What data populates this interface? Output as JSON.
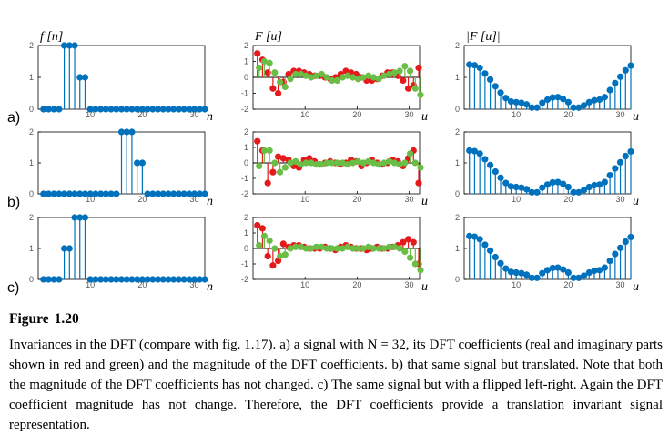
{
  "caption": {
    "label": "Figure",
    "number": "1.20",
    "text": "Invariances in the DFT (compare with fig. 1.17). a) a signal with N = 32, its DFT coefficients (real and imaginary parts shown in red and green) and the magnitude of the DFT coefficients. b) that same signal but translated. Note that both the magnitude of the DFT coefficients has not changed. c) The same signal but with a flipped left-right. Again the DFT coefficient magnitude has not change. Therefore, the DFT coefficients provide a translation invariant signal representation."
  },
  "colors": {
    "stem": "#0072BD",
    "real": "#E41A1C",
    "imag": "#6ABD45",
    "axis": "#000000",
    "tick_text": "#555555"
  },
  "chart_data": [
    {
      "type": "scatter",
      "panel": "a",
      "row_label": "a)",
      "title": "f [n]",
      "xlabel": "n",
      "xlim": [
        0,
        32
      ],
      "ylim": [
        0,
        2
      ],
      "xticks": [
        "10",
        "20",
        "30"
      ],
      "yticks": [
        "0",
        "1",
        "2"
      ],
      "series": [
        {
          "x": [
            1,
            2,
            3,
            4,
            5,
            6,
            7,
            8,
            9,
            10,
            11,
            12,
            13,
            14,
            15,
            16,
            17,
            18,
            19,
            20,
            21,
            22,
            23,
            24,
            25,
            26,
            27,
            28,
            29,
            30,
            31,
            32
          ],
          "values": [
            0,
            0,
            0,
            0,
            2,
            2,
            2,
            1,
            1,
            0,
            0,
            0,
            0,
            0,
            0,
            0,
            0,
            0,
            0,
            0,
            0,
            0,
            0,
            0,
            0,
            0,
            0,
            0,
            0,
            0,
            0,
            0
          ]
        }
      ]
    },
    {
      "type": "scatter",
      "panel": "a",
      "title": "F [u]",
      "xlabel": "u",
      "xlim": [
        0,
        32
      ],
      "ylim": [
        -2,
        2
      ],
      "xticks": [
        "10",
        "20",
        "30"
      ],
      "yticks": [
        "2",
        "1",
        "0",
        "-1",
        "-2"
      ],
      "series": [
        {
          "x": [
            1,
            2,
            3,
            4,
            5,
            6,
            7,
            8,
            9,
            10,
            11,
            12,
            13,
            14,
            15,
            16,
            17,
            18,
            19,
            20,
            21,
            22,
            23,
            24,
            25,
            26,
            27,
            28,
            29,
            30,
            31,
            32
          ],
          "values": [
            1.5,
            1.1,
            0.3,
            -0.7,
            -1.0,
            -0.3,
            0.2,
            0.4,
            0.4,
            0.3,
            0.2,
            0.1,
            0.1,
            0.0,
            -0.1,
            0.0,
            0.2,
            0.4,
            0.3,
            0.2,
            0.0,
            -0.2,
            -0.2,
            -0.1,
            0.1,
            0.3,
            0.3,
            0.1,
            -0.2,
            -0.7,
            -0.5,
            0.6
          ]
        },
        {
          "x": [
            1,
            2,
            3,
            4,
            5,
            6,
            7,
            8,
            9,
            10,
            11,
            12,
            13,
            14,
            15,
            16,
            17,
            18,
            19,
            20,
            21,
            22,
            23,
            24,
            25,
            26,
            27,
            28,
            29,
            30,
            31,
            32
          ],
          "values": [
            0.6,
            1.0,
            0.9,
            0.3,
            -0.3,
            -0.6,
            -0.1,
            0.2,
            0.2,
            0.1,
            0.0,
            0.1,
            0.2,
            0.0,
            -0.2,
            -0.2,
            0.0,
            0.1,
            0.0,
            -0.1,
            0.0,
            0.1,
            0.0,
            -0.1,
            0.1,
            0.2,
            0.3,
            0.4,
            0.7,
            0.4,
            -0.7,
            -1.1
          ]
        }
      ]
    },
    {
      "type": "scatter",
      "panel": "a",
      "title": "|F [u]|",
      "xlabel": "u",
      "xlim": [
        0,
        32
      ],
      "ylim": [
        0,
        2
      ],
      "xticks": [
        "10",
        "20",
        "30"
      ],
      "yticks": [
        "0",
        "1",
        "2"
      ],
      "series": [
        {
          "x": [
            1,
            2,
            3,
            4,
            5,
            6,
            7,
            8,
            9,
            10,
            11,
            12,
            13,
            14,
            15,
            16,
            17,
            18,
            19,
            20,
            21,
            22,
            23,
            24,
            25,
            26,
            27,
            28,
            29,
            30,
            31,
            32
          ],
          "values": [
            1.4,
            1.38,
            1.3,
            1.12,
            0.93,
            0.72,
            0.52,
            0.35,
            0.24,
            0.22,
            0.2,
            0.15,
            0.05,
            0.05,
            0.2,
            0.3,
            0.37,
            0.38,
            0.32,
            0.22,
            0.05,
            0.05,
            0.12,
            0.22,
            0.28,
            0.3,
            0.38,
            0.6,
            0.82,
            1.02,
            1.22,
            1.37
          ]
        }
      ]
    },
    {
      "type": "scatter",
      "panel": "b",
      "row_label": "b)",
      "xlabel": "n",
      "xlim": [
        0,
        32
      ],
      "ylim": [
        0,
        2
      ],
      "xticks": [
        "10",
        "20",
        "30"
      ],
      "yticks": [
        "0",
        "1",
        "2"
      ],
      "series": [
        {
          "x": [
            1,
            2,
            3,
            4,
            5,
            6,
            7,
            8,
            9,
            10,
            11,
            12,
            13,
            14,
            15,
            16,
            17,
            18,
            19,
            20,
            21,
            22,
            23,
            24,
            25,
            26,
            27,
            28,
            29,
            30,
            31,
            32
          ],
          "values": [
            0,
            0,
            0,
            0,
            0,
            0,
            0,
            0,
            0,
            0,
            0,
            0,
            0,
            0,
            0,
            2,
            2,
            2,
            1,
            1,
            0,
            0,
            0,
            0,
            0,
            0,
            0,
            0,
            0,
            0,
            0,
            0
          ]
        }
      ]
    },
    {
      "type": "scatter",
      "panel": "b",
      "xlabel": "u",
      "xlim": [
        0,
        32
      ],
      "ylim": [
        -2,
        2
      ],
      "xticks": [
        "10",
        "20",
        "30"
      ],
      "yticks": [
        "2",
        "1",
        "0",
        "-1",
        "-2"
      ],
      "series": [
        {
          "x": [
            1,
            2,
            3,
            4,
            5,
            6,
            7,
            8,
            9,
            10,
            11,
            12,
            13,
            14,
            15,
            16,
            17,
            18,
            19,
            20,
            21,
            22,
            23,
            24,
            25,
            26,
            27,
            28,
            29,
            30,
            31,
            32
          ],
          "values": [
            1.4,
            0.8,
            -1.3,
            -0.6,
            0.4,
            0.3,
            0.2,
            -0.2,
            -0.3,
            0.2,
            0.3,
            0.1,
            -0.1,
            0.0,
            0.1,
            0.0,
            -0.1,
            0.0,
            0.2,
            0.1,
            -0.2,
            0.0,
            0.2,
            0.0,
            -0.1,
            0.0,
            0.2,
            0.1,
            -0.2,
            0.3,
            0.8,
            -1.3
          ]
        },
        {
          "x": [
            1,
            2,
            3,
            4,
            5,
            6,
            7,
            8,
            9,
            10,
            11,
            12,
            13,
            14,
            15,
            16,
            17,
            18,
            19,
            20,
            21,
            22,
            23,
            24,
            25,
            26,
            27,
            28,
            29,
            30,
            31,
            32
          ],
          "values": [
            -0.2,
            0.8,
            0.8,
            0.0,
            -0.6,
            -0.3,
            0.0,
            0.1,
            -0.1,
            0.0,
            0.0,
            -0.1,
            -0.1,
            0.0,
            0.0,
            0.0,
            0.0,
            -0.1,
            0.0,
            0.1,
            0.0,
            0.1,
            0.0,
            -0.1,
            0.0,
            0.1,
            0.0,
            -0.1,
            0.0,
            0.6,
            0.0,
            -0.3
          ]
        }
      ]
    },
    {
      "type": "scatter",
      "panel": "b",
      "xlabel": "u",
      "xlim": [
        0,
        32
      ],
      "ylim": [
        0,
        2
      ],
      "xticks": [
        "10",
        "20",
        "30"
      ],
      "yticks": [
        "0",
        "1",
        "2"
      ],
      "series": [
        {
          "x": [
            1,
            2,
            3,
            4,
            5,
            6,
            7,
            8,
            9,
            10,
            11,
            12,
            13,
            14,
            15,
            16,
            17,
            18,
            19,
            20,
            21,
            22,
            23,
            24,
            25,
            26,
            27,
            28,
            29,
            30,
            31,
            32
          ],
          "values": [
            1.4,
            1.38,
            1.3,
            1.12,
            0.93,
            0.72,
            0.52,
            0.35,
            0.24,
            0.22,
            0.2,
            0.15,
            0.05,
            0.05,
            0.2,
            0.3,
            0.37,
            0.38,
            0.32,
            0.22,
            0.05,
            0.05,
            0.12,
            0.22,
            0.28,
            0.3,
            0.38,
            0.6,
            0.82,
            1.02,
            1.22,
            1.37
          ]
        }
      ]
    },
    {
      "type": "scatter",
      "panel": "c",
      "row_label": "c)",
      "xlabel": "n",
      "xlim": [
        0,
        32
      ],
      "ylim": [
        0,
        2
      ],
      "xticks": [
        "10",
        "20",
        "30"
      ],
      "yticks": [
        "0",
        "1",
        "2"
      ],
      "series": [
        {
          "x": [
            1,
            2,
            3,
            4,
            5,
            6,
            7,
            8,
            9,
            10,
            11,
            12,
            13,
            14,
            15,
            16,
            17,
            18,
            19,
            20,
            21,
            22,
            23,
            24,
            25,
            26,
            27,
            28,
            29,
            30,
            31,
            32
          ],
          "values": [
            0,
            0,
            0,
            0,
            1,
            1,
            2,
            2,
            2,
            0,
            0,
            0,
            0,
            0,
            0,
            0,
            0,
            0,
            0,
            0,
            0,
            0,
            0,
            0,
            0,
            0,
            0,
            0,
            0,
            0,
            0,
            0
          ]
        }
      ]
    },
    {
      "type": "scatter",
      "panel": "c",
      "xlabel": "u",
      "xlim": [
        0,
        32
      ],
      "ylim": [
        -2,
        2
      ],
      "xticks": [
        "10",
        "20",
        "30"
      ],
      "yticks": [
        "2",
        "1",
        "0",
        "-1",
        "-2"
      ],
      "series": [
        {
          "x": [
            1,
            2,
            3,
            4,
            5,
            6,
            7,
            8,
            9,
            10,
            11,
            12,
            13,
            14,
            15,
            16,
            17,
            18,
            19,
            20,
            21,
            22,
            23,
            24,
            25,
            26,
            27,
            28,
            29,
            30,
            31,
            32
          ],
          "values": [
            1.5,
            1.3,
            -0.5,
            -1.1,
            -0.8,
            0.3,
            0.1,
            0.2,
            0.2,
            0.1,
            0.0,
            0.0,
            0.0,
            0.1,
            0.0,
            -0.1,
            0.1,
            0.2,
            0.1,
            0.0,
            0.0,
            -0.1,
            0.0,
            0.1,
            0.0,
            0.0,
            0.1,
            0.2,
            0.4,
            0.6,
            0.4,
            -1.0
          ]
        },
        {
          "x": [
            1,
            2,
            3,
            4,
            5,
            6,
            7,
            8,
            9,
            10,
            11,
            12,
            13,
            14,
            15,
            16,
            17,
            18,
            19,
            20,
            21,
            22,
            23,
            24,
            25,
            26,
            27,
            28,
            29,
            30,
            31,
            32
          ],
          "values": [
            0.2,
            0.8,
            0.5,
            0.0,
            -0.5,
            -0.4,
            0.0,
            0.1,
            0.1,
            0.0,
            0.0,
            0.1,
            0.1,
            0.0,
            0.0,
            0.0,
            0.0,
            0.1,
            0.0,
            0.0,
            0.0,
            0.1,
            0.0,
            0.0,
            0.0,
            0.1,
            0.1,
            0.0,
            -0.2,
            -0.6,
            -1.0,
            -1.4
          ]
        }
      ]
    },
    {
      "type": "scatter",
      "panel": "c",
      "xlabel": "u",
      "xlim": [
        0,
        32
      ],
      "ylim": [
        0,
        2
      ],
      "xticks": [
        "10",
        "20",
        "30"
      ],
      "yticks": [
        "0",
        "1",
        "2"
      ],
      "series": [
        {
          "x": [
            1,
            2,
            3,
            4,
            5,
            6,
            7,
            8,
            9,
            10,
            11,
            12,
            13,
            14,
            15,
            16,
            17,
            18,
            19,
            20,
            21,
            22,
            23,
            24,
            25,
            26,
            27,
            28,
            29,
            30,
            31,
            32
          ],
          "values": [
            1.4,
            1.38,
            1.3,
            1.12,
            0.93,
            0.72,
            0.52,
            0.35,
            0.24,
            0.22,
            0.2,
            0.15,
            0.05,
            0.05,
            0.2,
            0.3,
            0.37,
            0.38,
            0.32,
            0.22,
            0.05,
            0.05,
            0.12,
            0.22,
            0.28,
            0.3,
            0.38,
            0.6,
            0.82,
            1.02,
            1.22,
            1.37
          ]
        }
      ]
    }
  ]
}
